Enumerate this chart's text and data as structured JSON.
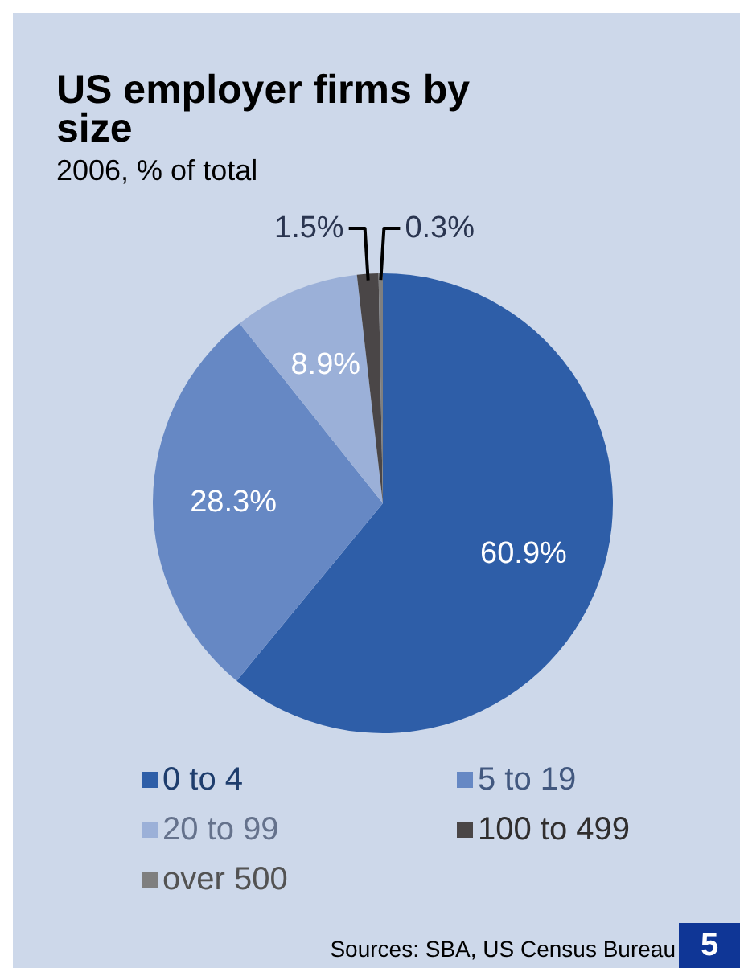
{
  "chart_data": {
    "type": "pie",
    "title": "US employer firms by size",
    "subtitle": "2006, % of total",
    "categories": [
      "0 to 4",
      "5 to 19",
      "20 to 99",
      "100 to 499",
      "over 500"
    ],
    "values": [
      60.9,
      28.3,
      8.9,
      1.5,
      0.3
    ],
    "colors": [
      "#2e5ea8",
      "#6688c4",
      "#9bb0d8",
      "#4a4647",
      "#7f7f7f"
    ],
    "value_labels": [
      "60.9%",
      "28.3%",
      "8.9%",
      "1.5%",
      "0.3%"
    ],
    "legend": "bottom",
    "annotations": [
      "Sources: SBA, US Census Bureau",
      "5"
    ]
  }
}
